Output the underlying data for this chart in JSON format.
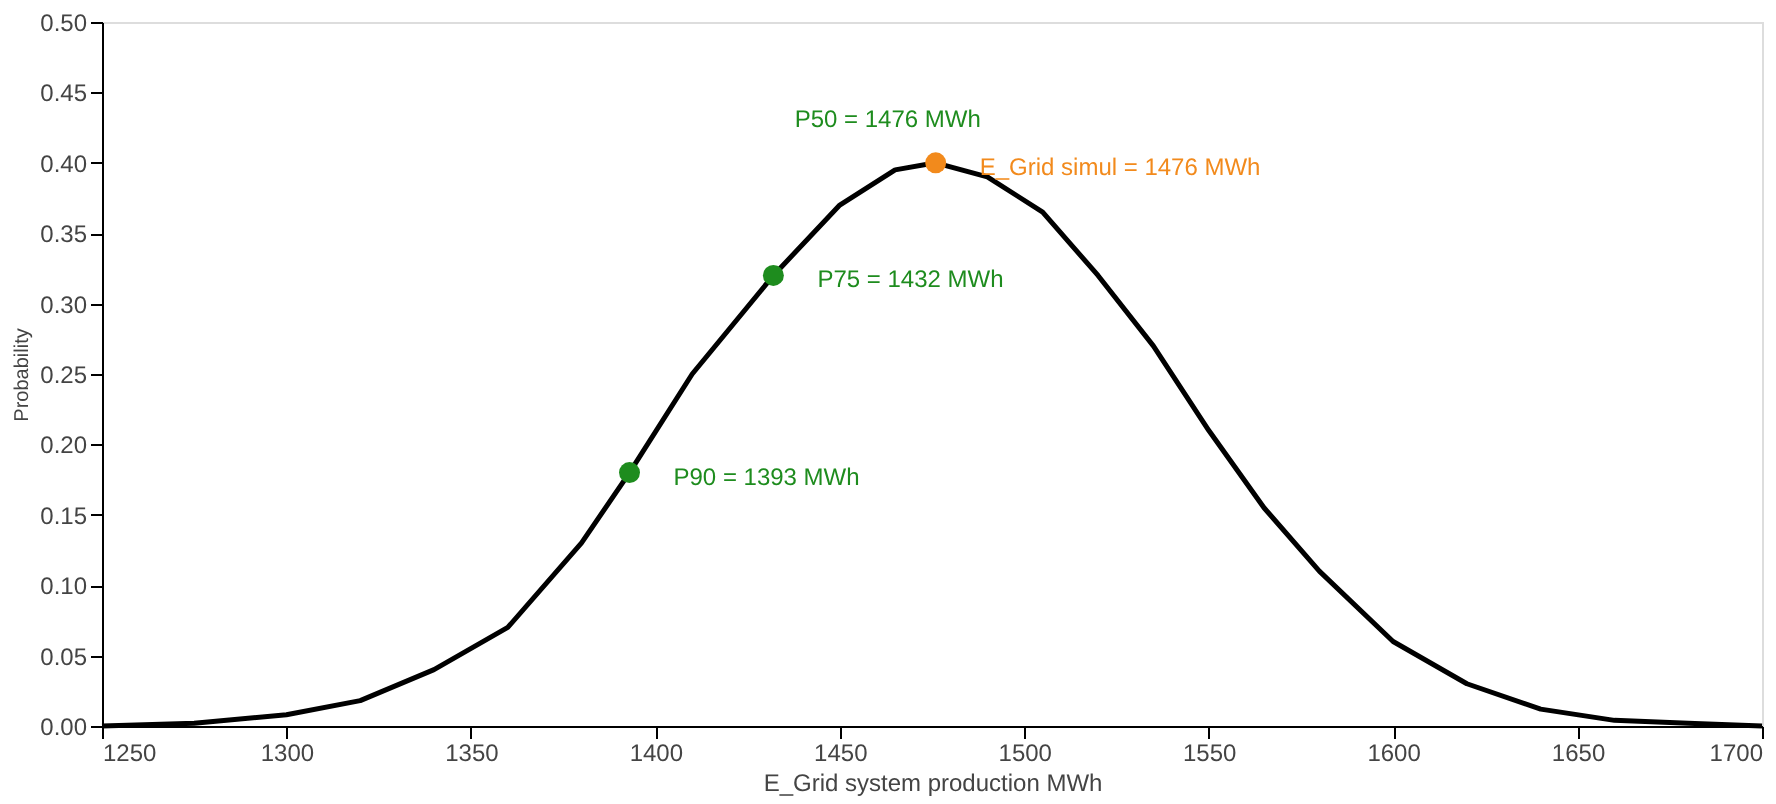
{
  "chart_data": {
    "type": "line",
    "xlabel": "E_Grid system production MWh",
    "ylabel": "Probability",
    "xlim": [
      1250,
      1700
    ],
    "xticks": [
      1250,
      1300,
      1350,
      1400,
      1450,
      1500,
      1550,
      1600,
      1650,
      1700
    ],
    "ylim": [
      0,
      0.5
    ],
    "yticks": [
      {
        "value": 0,
        "label": "0.00"
      },
      0.05,
      {
        "value": 0.1,
        "label": "0.10"
      },
      0.15,
      {
        "value": 0.2,
        "label": "0.20"
      },
      0.25,
      {
        "value": 0.3,
        "label": "0.30"
      },
      0.35,
      {
        "value": 0.4,
        "label": "0.40"
      },
      0.45,
      {
        "value": 0.5,
        "label": "0.50"
      }
    ],
    "grid": false,
    "marker": "circle",
    "line_style": "solid",
    "series": [
      {
        "marker": "none",
        "color": "#000000",
        "x": [
          1250,
          1275,
          1300,
          1320,
          1340,
          1360,
          1380,
          1393,
          1410,
          1432,
          1450,
          1465,
          1476,
          1490,
          1505,
          1520,
          1535,
          1550,
          1565,
          1580,
          1600,
          1620,
          1640,
          1660,
          1680,
          1700
        ],
        "values": [
          0.0,
          0.002,
          0.008,
          0.018,
          0.04,
          0.07,
          0.13,
          0.18,
          0.25,
          0.32,
          0.37,
          0.395,
          0.4,
          0.39,
          0.365,
          0.32,
          0.27,
          0.21,
          0.155,
          0.11,
          0.06,
          0.03,
          0.012,
          0.004,
          0.002,
          0.0
        ]
      },
      {
        "type": "scatter",
        "name": "P90 = 1393 MWh",
        "color": "#1e8c1e",
        "x": [
          1393
        ],
        "values": [
          0.18
        ]
      },
      {
        "type": "scatter",
        "name": "P75 = 1432 MWh",
        "color": "#1e8c1e",
        "x": [
          1432
        ],
        "values": [
          0.32
        ]
      },
      {
        "type": "scatter",
        "name": "E_Grid simul = 1476 MWh",
        "color": "#f28a1c",
        "x": [
          1476
        ],
        "values": [
          0.4
        ]
      }
    ],
    "annotations": [
      {
        "text": "P50 = 1476 MWh",
        "x": 1476,
        "y": 0.4
      }
    ]
  }
}
